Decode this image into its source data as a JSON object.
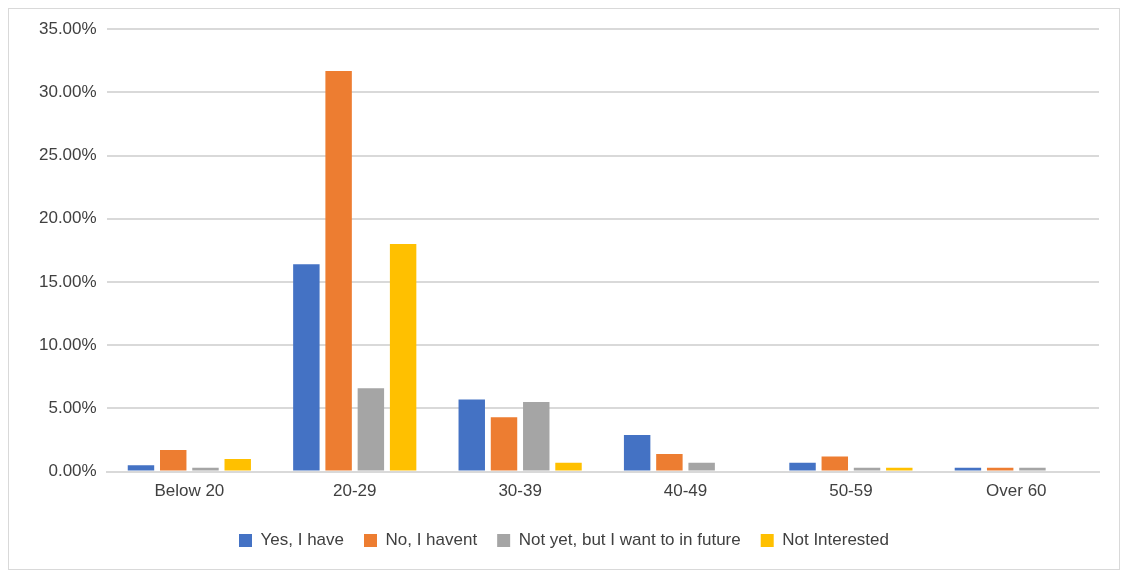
{
  "chart_data": {
    "type": "bar",
    "categories": [
      "Below 20",
      "20-29",
      "30-39",
      "40-49",
      "50-59",
      "Over 60"
    ],
    "series": [
      {
        "name": "Yes, I have",
        "color": "#4472c4",
        "values": [
          0.5,
          16.4,
          5.7,
          2.9,
          0.7,
          0.3
        ]
      },
      {
        "name": "No, I havent",
        "color": "#ed7d31",
        "values": [
          1.7,
          31.7,
          4.3,
          1.4,
          1.2,
          0.3
        ]
      },
      {
        "name": "Not yet, but I want to in future",
        "color": "#a5a5a5",
        "values": [
          0.3,
          6.6,
          5.5,
          0.7,
          0.3,
          0.3
        ]
      },
      {
        "name": "Not Interested",
        "color": "#ffc000",
        "values": [
          1.0,
          18.0,
          0.7,
          0,
          0.3,
          0
        ]
      }
    ],
    "ylim": [
      0,
      35
    ],
    "yticks": [
      {
        "value": 0,
        "label": "0.00%"
      },
      {
        "value": 5,
        "label": "5.00%"
      },
      {
        "value": 10,
        "label": "10.00%"
      },
      {
        "value": 15,
        "label": "15.00%"
      },
      {
        "value": 20,
        "label": "20.00%"
      },
      {
        "value": 25,
        "label": "25.00%"
      },
      {
        "value": 30,
        "label": "30.00%"
      },
      {
        "value": 35,
        "label": "35.00%"
      }
    ],
    "grid": "y",
    "legend": "bottom"
  }
}
